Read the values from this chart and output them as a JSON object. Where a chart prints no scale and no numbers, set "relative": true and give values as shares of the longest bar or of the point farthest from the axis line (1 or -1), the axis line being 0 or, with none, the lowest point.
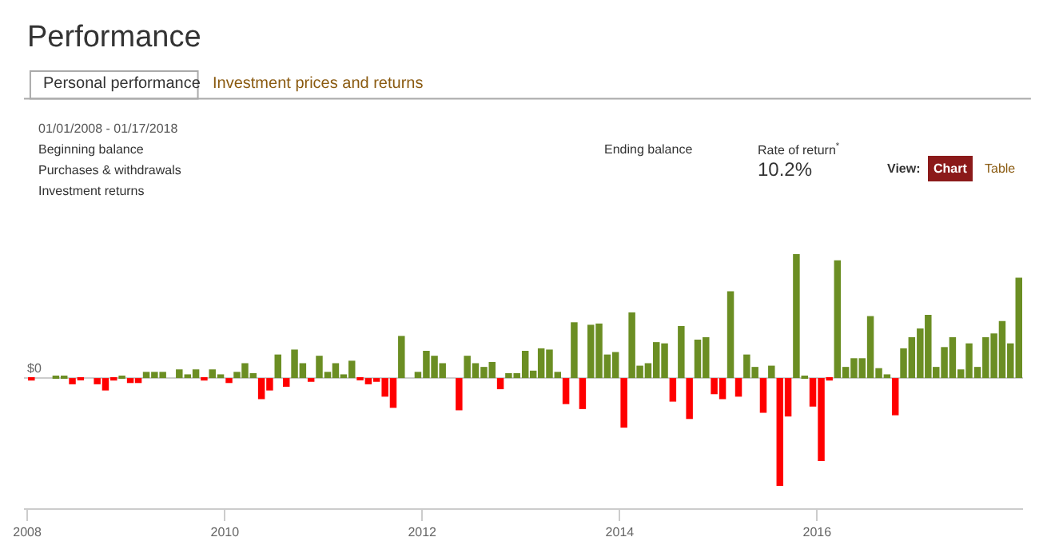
{
  "chart_data": {
    "type": "bar",
    "title": "Performance",
    "relative": true,
    "annotations": [
      "Personal performance",
      "Investment prices and returns",
      "01/01/2008 - 01/17/2018",
      "Beginning balance",
      "Purchases & withdrawals",
      "Investment returns",
      "Ending balance",
      "Rate of return$^{*}$",
      "10.2%",
      "View:",
      "Chart",
      "Table"
    ],
    "x": [
      "2008-01",
      "2008-02",
      "2008-03",
      "2008-04",
      "2008-05",
      "2008-06",
      "2008-07",
      "2008-08",
      "2008-09",
      "2008-10",
      "2008-11",
      "2008-12",
      "2009-01",
      "2009-02",
      "2009-03",
      "2009-04",
      "2009-05",
      "2009-06",
      "2009-07",
      "2009-08",
      "2009-09",
      "2009-10",
      "2009-11",
      "2009-12",
      "2010-01",
      "2010-02",
      "2010-03",
      "2010-04",
      "2010-05",
      "2010-06",
      "2010-07",
      "2010-08",
      "2010-09",
      "2010-10",
      "2010-11",
      "2010-12",
      "2011-01",
      "2011-02",
      "2011-03",
      "2011-04",
      "2011-05",
      "2011-06",
      "2011-07",
      "2011-08",
      "2011-09",
      "2011-10",
      "2011-11",
      "2011-12",
      "2012-01",
      "2012-02",
      "2012-03",
      "2012-04",
      "2012-05",
      "2012-06",
      "2012-07",
      "2012-08",
      "2012-09",
      "2012-10",
      "2012-11",
      "2012-12",
      "2013-01",
      "2013-02",
      "2013-03",
      "2013-04",
      "2013-05",
      "2013-06",
      "2013-07",
      "2013-08",
      "2013-09",
      "2013-10",
      "2013-11",
      "2013-12",
      "2014-01",
      "2014-02",
      "2014-03",
      "2014-04",
      "2014-05",
      "2014-06",
      "2014-07",
      "2014-08",
      "2014-09",
      "2014-10",
      "2014-11",
      "2014-12",
      "2015-01",
      "2015-02",
      "2015-03",
      "2015-04",
      "2015-05",
      "2015-06",
      "2015-07",
      "2015-08",
      "2015-09",
      "2015-10",
      "2015-11",
      "2015-12",
      "2016-01",
      "2016-02",
      "2016-03",
      "2016-04",
      "2016-05",
      "2016-06",
      "2016-07",
      "2016-08",
      "2016-09",
      "2016-10",
      "2016-11",
      "2016-12",
      "2017-01",
      "2017-02",
      "2017-03",
      "2017-04",
      "2017-05",
      "2017-06",
      "2017-07",
      "2017-08",
      "2017-09",
      "2017-10",
      "2017-11",
      "2017-12",
      "2018-01"
    ],
    "values": [
      -0.02,
      0,
      0,
      0.02,
      0.01,
      -0.05,
      -0.01,
      0,
      -0.05,
      -0.1,
      -0.02,
      0.02,
      -0.04,
      -0.04,
      0.05,
      0.05,
      0.05,
      0,
      0.07,
      0.03,
      0.07,
      -0.02,
      0.07,
      0.03,
      -0.04,
      0.05,
      0.12,
      0.04,
      -0.17,
      -0.1,
      0.19,
      -0.07,
      0.23,
      0.12,
      -0.03,
      0.18,
      0.05,
      0.12,
      0.03,
      0.14,
      -0.01,
      -0.05,
      -0.03,
      -0.15,
      -0.24,
      0.34,
      0,
      0.05,
      0.22,
      0.18,
      0.12,
      0,
      -0.26,
      0.18,
      0.12,
      0.09,
      0.13,
      -0.09,
      0.04,
      0.04,
      0.22,
      0.06,
      0.24,
      0.23,
      0.05,
      -0.21,
      0.45,
      -0.25,
      0.43,
      0.44,
      0.19,
      0.21,
      -0.4,
      0.53,
      0.1,
      0.12,
      0.29,
      0.28,
      -0.19,
      0.42,
      -0.33,
      0.31,
      0.33,
      -0.13,
      -0.17,
      0.7,
      -0.15,
      0.19,
      0.09,
      -0.28,
      0.1,
      -0.87,
      -0.31,
      1,
      0.02,
      -0.23,
      -0.67,
      -0.02,
      0.95,
      0.09,
      0.16,
      0.16,
      0.5,
      0.08,
      0.03,
      -0.3,
      0.24,
      0.33,
      0.4,
      0.51,
      0.09,
      0.25,
      0.33,
      0.07,
      0.28,
      0.09,
      0.33,
      0.36,
      0.46,
      0.28,
      0.81
    ],
    "colors": [
      "#ff0000",
      "#6b8e23",
      "#6b8e23",
      "#6b8e23",
      "#6b8e23",
      "#ff0000",
      "#ff0000",
      "#6b8e23",
      "#ff0000",
      "#ff0000",
      "#ff0000",
      "#6b8e23",
      "#ff0000",
      "#ff0000",
      "#6b8e23",
      "#6b8e23",
      "#6b8e23",
      "#6b8e23",
      "#6b8e23",
      "#6b8e23",
      "#6b8e23",
      "#ff0000",
      "#6b8e23",
      "#6b8e23",
      "#ff0000",
      "#6b8e23",
      "#6b8e23",
      "#6b8e23",
      "#ff0000",
      "#ff0000",
      "#6b8e23",
      "#ff0000",
      "#6b8e23",
      "#6b8e23",
      "#ff0000",
      "#6b8e23",
      "#6b8e23",
      "#6b8e23",
      "#6b8e23",
      "#6b8e23",
      "#ff0000",
      "#ff0000",
      "#ff0000",
      "#ff0000",
      "#ff0000",
      "#6b8e23",
      "#6b8e23",
      "#6b8e23",
      "#6b8e23",
      "#6b8e23",
      "#6b8e23",
      "#6b8e23",
      "#ff0000",
      "#6b8e23",
      "#6b8e23",
      "#6b8e23",
      "#6b8e23",
      "#ff0000",
      "#6b8e23",
      "#6b8e23",
      "#6b8e23",
      "#6b8e23",
      "#6b8e23",
      "#6b8e23",
      "#6b8e23",
      "#ff0000",
      "#6b8e23",
      "#ff0000",
      "#6b8e23",
      "#6b8e23",
      "#6b8e23",
      "#6b8e23",
      "#ff0000",
      "#6b8e23",
      "#6b8e23",
      "#6b8e23",
      "#6b8e23",
      "#6b8e23",
      "#ff0000",
      "#6b8e23",
      "#ff0000",
      "#6b8e23",
      "#6b8e23",
      "#ff0000",
      "#ff0000",
      "#6b8e23",
      "#ff0000",
      "#6b8e23",
      "#6b8e23",
      "#ff0000",
      "#6b8e23",
      "#ff0000",
      "#ff0000",
      "#6b8e23",
      "#6b8e23",
      "#ff0000",
      "#ff0000",
      "#ff0000",
      "#6b8e23",
      "#6b8e23",
      "#6b8e23",
      "#6b8e23",
      "#6b8e23",
      "#6b8e23",
      "#6b8e23",
      "#ff0000",
      "#6b8e23",
      "#6b8e23",
      "#6b8e23",
      "#6b8e23",
      "#6b8e23",
      "#6b8e23",
      "#6b8e23",
      "#6b8e23",
      "#6b8e23",
      "#6b8e23",
      "#6b8e23",
      "#6b8e23",
      "#6b8e23",
      "#6b8e23",
      "#6b8e23"
    ],
    "ref_lines": [
      {
        "axis": "y",
        "value": 0,
        "label": "$0",
        "color": "#cccccc"
      }
    ],
    "xlim": [
      "2007-12-20",
      "2018-02-01"
    ],
    "xticks": [
      {
        "value": "2008-01-01",
        "label": "2008"
      },
      {
        "value": "2010-01-01",
        "label": "2010"
      },
      {
        "value": "2012-01-01",
        "label": "2012"
      },
      {
        "value": "2014-01-01",
        "label": "2014"
      },
      {
        "value": "2016-01-01",
        "label": "2016"
      }
    ]
  }
}
